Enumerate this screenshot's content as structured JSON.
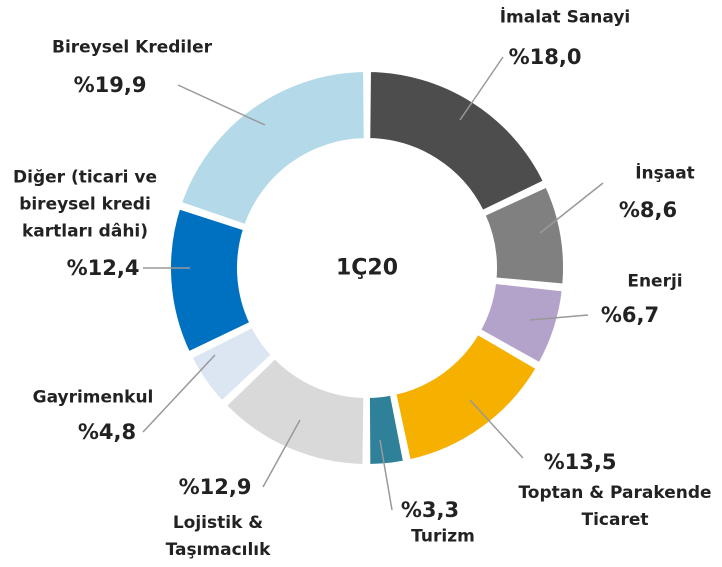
{
  "chart_data": {
    "type": "donut",
    "center_label": "1Ç20",
    "categories": [
      "İmalat Sanayi",
      "İnşaat",
      "Enerji",
      "Toptan & Parakende Ticaret",
      "Turizm",
      "Lojistik & Taşımacılık",
      "Gayrimenkul",
      "Diğer (ticari ve bireysel kredi kartları dâhi)",
      "Bireysel Krediler"
    ],
    "values": [
      18.0,
      8.6,
      6.7,
      13.5,
      3.3,
      12.9,
      4.8,
      12.4,
      19.9
    ],
    "value_labels": [
      "%18,0",
      "%8,6",
      "%6,7",
      "%13,5",
      "%3,3",
      "%12,9",
      "%4,8",
      "%12,4",
      "%19,9"
    ],
    "colors": [
      "#4d4d4d",
      "#808080",
      "#b3a2c9",
      "#f5b000",
      "#2e8199",
      "#d9d9d9",
      "#dce6f2",
      "#0070c0",
      "#b4d9e8"
    ]
  }
}
